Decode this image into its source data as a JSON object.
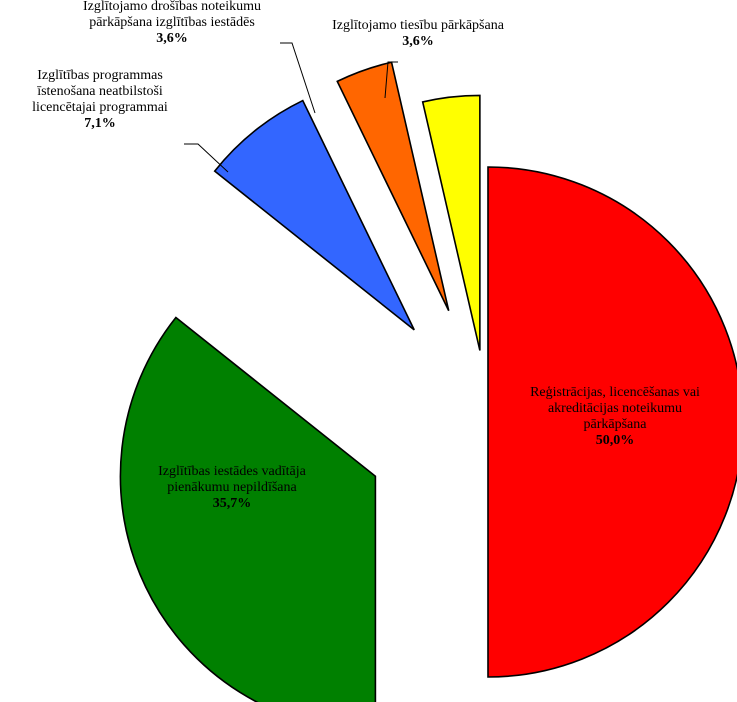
{
  "chart_data": {
    "type": "pie",
    "title": "",
    "slices": [
      {
        "name": "Reģistrācijas, licencēšanas vai akreditācijas noteikumu pārkāpšana",
        "label_lines": [
          "Reģistrācijas, licencēšanas vai",
          "akreditācijas noteikumu",
          "pārkāpšana"
        ],
        "value": 50.0,
        "value_label": "50,0%",
        "color": "#ff0000"
      },
      {
        "name": "Izglītības iestādes vadītāja pienākumu nepildīšana",
        "label_lines": [
          "Izglītības iestādes vadītāja",
          "pienākumu nepildīšana"
        ],
        "value": 35.7,
        "value_label": "35,7%",
        "color": "#008000"
      },
      {
        "name": "Izglītības programmas īstenošana neatbilstoši licencētajai programmai",
        "label_lines": [
          "Izglītības programmas",
          "īstenošana neatbilstoši",
          "licencētajai programmai"
        ],
        "value": 7.1,
        "value_label": "7,1%",
        "color": "#3366ff"
      },
      {
        "name": "Izglītojamo drošības noteikumu pārkāpšana izglītības iestādēs",
        "label_lines": [
          "Izglītojamo drošības noteikumu",
          "pārkāpšana izglītības iestādēs"
        ],
        "value": 3.6,
        "value_label": "3,6%",
        "color": "#ff6600"
      },
      {
        "name": "Izglītojamo tiesību pārkāpšana",
        "label_lines": [
          "Izglītojamo tiesību pārkāpšana"
        ],
        "value": 3.6,
        "value_label": "3,6%",
        "color": "#ffff00"
      }
    ]
  }
}
